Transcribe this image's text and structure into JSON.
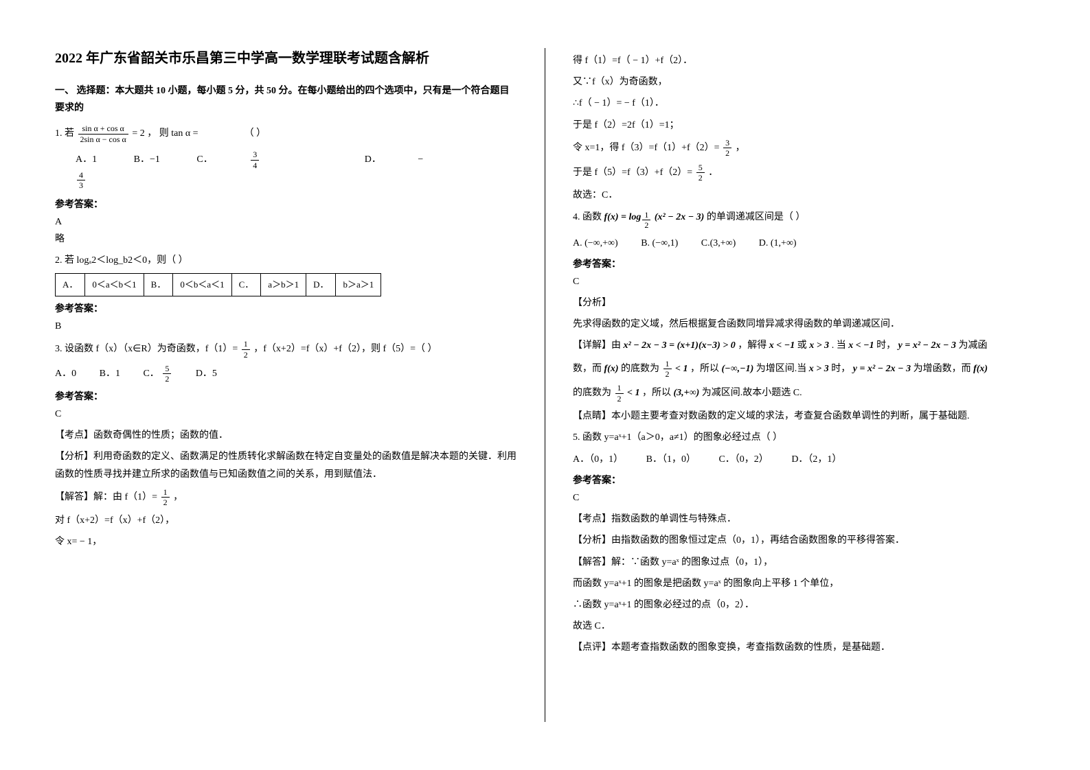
{
  "title": "2022 年广东省韶关市乐昌第三中学高一数学理联考试题含解析",
  "section1": "一、 选择题：本大题共 10 小题，每小题 5 分，共 50 分。在每小题给出的四个选项中，只有是一个符合题目要求的",
  "q1": {
    "stem_prefix": "1. 若 ",
    "frac_num": "sin α + cos α",
    "frac_den": "2sin α − cos α",
    "stem_after": " = 2 ， 则 tan α = ",
    "paren": "（        ）",
    "optA": "A．1",
    "optB": "B．−1",
    "optC_prefix": "C．",
    "optC_num": "3",
    "optC_den": "4",
    "optD_prefix": "D．",
    "optD_neg": "−",
    "optD_num": "4",
    "optD_den": "3",
    "ans_label": "参考答案：",
    "ans": "A",
    "note": "略"
  },
  "q2": {
    "stem": "2. 若 logₐ2＜log_b2＜0，则（     ）",
    "cellA": "A．",
    "cellA2": "0＜a＜b＜1",
    "cellB": "B．",
    "cellB2": "0＜b＜a＜1",
    "cellC": "C．",
    "cellC2": "a＞b＞1",
    "cellD": "D．",
    "cellD2": "b＞a＞1",
    "ans_label": "参考答案：",
    "ans": "B"
  },
  "q3": {
    "stem_pre": "3. 设函数 f（x）（x∈R）为奇函数，f（1）= ",
    "f1_num": "1",
    "f1_den": "2",
    "stem_mid": "，f（x+2）=f（x）+f（2），则 f（5）=（      ）",
    "optA": "A．0",
    "optB": "B．1",
    "optC_pre": "C．",
    "optC_num": "5",
    "optC_den": "2",
    "optD": "D．5",
    "ans_label": "参考答案：",
    "ans": "C",
    "exam_pt": "【考点】函数奇偶性的性质；函数的值．",
    "analysis": "【分析】利用奇函数的定义、函数满足的性质转化求解函数在特定自变量处的函数值是解决本题的关键．利用函数的性质寻找并建立所求的函数值与已知函数值之间的关系，用到赋值法．",
    "sol_label": "【解答】解：由 f（1）= ",
    "sol1_num": "1",
    "sol1_den": "2",
    "sol1_after": "，",
    "sol2": "对 f（x+2）=f（x）+f（2），",
    "sol3": "令 x= − 1，"
  },
  "col2": {
    "l1": "得 f（1）=f（ − 1）+f（2）．",
    "l2": "又∵f（x）为奇函数，",
    "l3": "∴f（ − 1）= − f（1）．",
    "l4": "于是 f（2）=2f（1）=1；",
    "l5_pre": "令 x=1，得 f（3）=f（1）+f（2）= ",
    "l5_num": "3",
    "l5_den": "2",
    "l5_after": "，",
    "l6_pre": "于是 f（5）=f（3）+f（2）= ",
    "l6_num": "5",
    "l6_den": "2",
    "l6_after": "．",
    "l7": "故选：C．"
  },
  "q4": {
    "stem_pre": "4. 函数 ",
    "fx": "f(x) = log",
    "sub_num": "1",
    "sub_den": "2",
    "inner": "(x² − 2x − 3)",
    "stem_after": " 的单调递减区间是（        ）",
    "optA": "A. (−∞,+∞)",
    "optB": "B. (−∞,1)",
    "optC": "C.(3,+∞)",
    "optD": "D. (1,+∞)",
    "ans_label": "参考答案：",
    "ans": "C",
    "ana_head": "【分析】",
    "ana": "先求得函数的定义域，然后根据复合函数同增异减求得函数的单调递减区间．",
    "det_pre": "【详解】由 ",
    "det_eq": "x² − 2x − 3 = (x+1)(x−3) > 0",
    "det_mid1": " ，解得 ",
    "det_r1": "x < −1",
    "det_or": " 或 ",
    "det_r2": "x > 3",
    "det_mid2": " . 当 ",
    "det_r3": "x < −1",
    "det_mid3": " 时， ",
    "det_y1": "y = x² − 2x − 3",
    "det_tail1": " 为减函",
    "line2_a": "数，而 ",
    "line2_fx": "f(x)",
    "line2_b": " 的底数为 ",
    "half_num": "1",
    "half_den": "2",
    "lt1": " < 1",
    "line2_c": " ，所以 ",
    "int1": "(−∞,−1)",
    "line2_d": " 为增区间.当 ",
    "xgt3": "x > 3",
    "line2_e": " 时，",
    "det_y2": "y = x² − 2x − 3",
    "line2_f": " 为增函数，而 ",
    "fx2": "f(x)",
    "line3_a": "的底数为 ",
    "line3_b": " ，所以 ",
    "int2": "(3,+∞)",
    "line3_c": " 为减区间.故本小题选 C.",
    "pt": "【点睛】本小题主要考查对数函数的定义域的求法，考查复合函数单调性的判断，属于基础题."
  },
  "q5": {
    "stem": "5. 函数 y=aˣ+1（a＞0，a≠1）的图象必经过点（      ）",
    "optA": "A．（0，1）",
    "optB": "B．（1，0）",
    "optC": "C．（0，2）",
    "optD": "D．（2，1）",
    "ans_label": "参考答案：",
    "ans": "C",
    "pt": "【考点】指数函数的单调性与特殊点．",
    "ana": "【分析】由指数函数的图象恒过定点（0，1），再结合函数图象的平移得答案．",
    "sol1": "【解答】解：∵函数 y=aˣ 的图象过点（0，1），",
    "sol2": "而函数 y=aˣ+1 的图象是把函数 y=aˣ 的图象向上平移 1 个单位，",
    "sol3": "∴函数 y=aˣ+1 的图象必经过的点（0，2）．",
    "sol4": "故选 C．",
    "cm": "【点评】本题考查指数函数的图象变换，考查指数函数的性质，是基础题．"
  }
}
